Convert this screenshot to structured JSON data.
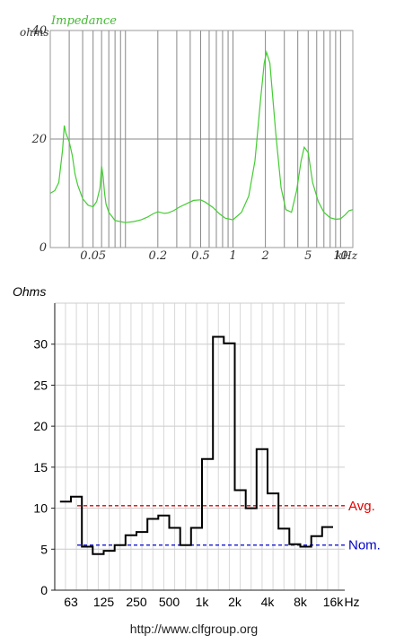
{
  "chart_data": [
    {
      "type": "line",
      "title": "Impedance",
      "ylabel": "ohms",
      "xlabel": "",
      "x_scale": "log",
      "x_unit_label": "kHz",
      "xlim_khz": [
        0.02,
        13
      ],
      "ylim": [
        0,
        40
      ],
      "y_ticks": [
        {
          "value": 0,
          "label": "0"
        },
        {
          "value": 20,
          "label": "20"
        },
        {
          "value": 40,
          "label": "40"
        }
      ],
      "x_ticks": [
        {
          "value": 0.05,
          "label": "0.05"
        },
        {
          "value": 0.2,
          "label": "0.2"
        },
        {
          "value": 0.5,
          "label": "0.5"
        },
        {
          "value": 1,
          "label": "1"
        },
        {
          "value": 2,
          "label": "2"
        },
        {
          "value": 5,
          "label": "5"
        },
        {
          "value": 10,
          "label": "10"
        }
      ],
      "grid": true,
      "line_color": "#44cc33",
      "series": [
        {
          "x": [
            0.02,
            0.022,
            0.024,
            0.026,
            0.027,
            0.028,
            0.03,
            0.032,
            0.034,
            0.036,
            0.04,
            0.045,
            0.05,
            0.054,
            0.058,
            0.06,
            0.062,
            0.064,
            0.066,
            0.07,
            0.08,
            0.1,
            0.12,
            0.14,
            0.16,
            0.18,
            0.2,
            0.23,
            0.25,
            0.28,
            0.32,
            0.38,
            0.43,
            0.5,
            0.55,
            0.65,
            0.75,
            0.85,
            1.0,
            1.2,
            1.4,
            1.6,
            1.8,
            1.95,
            2.05,
            2.2,
            2.5,
            2.8,
            3.1,
            3.5,
            3.9,
            4.3,
            4.6,
            5.0,
            5.5,
            6.2,
            7.0,
            8.0,
            9.0,
            10.0,
            11.0,
            12.0,
            13.0
          ],
          "values": [
            10,
            10.5,
            12,
            18,
            22.5,
            21,
            19.5,
            17,
            13.5,
            11.5,
            9,
            7.8,
            7.5,
            8.5,
            11,
            15,
            13,
            10,
            8,
            6.5,
            5,
            4.6,
            4.8,
            5.1,
            5.6,
            6.2,
            6.6,
            6.3,
            6.4,
            6.8,
            7.5,
            8.2,
            8.7,
            8.8,
            8.4,
            7.4,
            6.2,
            5.4,
            5.1,
            6.5,
            9.5,
            16,
            27,
            34,
            36,
            34,
            21,
            11,
            7,
            6.5,
            10.5,
            16,
            18.5,
            17.5,
            12,
            8.5,
            6.5,
            5.5,
            5.2,
            5.3,
            6.0,
            6.8,
            7.0
          ]
        }
      ]
    },
    {
      "type": "step",
      "title": "",
      "ylabel": "Ohms",
      "xlabel": "",
      "x_unit_label": "Hz",
      "ylim": [
        0,
        35
      ],
      "y_ticks": [
        0,
        5,
        10,
        15,
        20,
        25,
        30
      ],
      "x_labels": [
        "63",
        "125",
        "250",
        "500",
        "1k",
        "2k",
        "4k",
        "8k",
        "16k"
      ],
      "bands_per_label": 3,
      "grid": true,
      "bands": [
        {
          "value": 10.8
        },
        {
          "value": 11.4
        },
        {
          "value": 5.3
        },
        {
          "value": 4.4
        },
        {
          "value": 4.8
        },
        {
          "value": 5.5
        },
        {
          "value": 6.7
        },
        {
          "value": 7.1
        },
        {
          "value": 8.7
        },
        {
          "value": 9.1
        },
        {
          "value": 7.6
        },
        {
          "value": 5.5
        },
        {
          "value": 7.6
        },
        {
          "value": 16.0
        },
        {
          "value": 30.9
        },
        {
          "value": 30.1
        },
        {
          "value": 12.2
        },
        {
          "value": 10.0
        },
        {
          "value": 17.2
        },
        {
          "value": 11.8
        },
        {
          "value": 7.5
        },
        {
          "value": 5.6
        },
        {
          "value": 5.3
        },
        {
          "value": 6.6
        },
        {
          "value": 7.7
        }
      ],
      "reference_lines": [
        {
          "label": "Avg.",
          "value": 10.3,
          "color": "#e00000"
        },
        {
          "label": "Nom.",
          "value": 5.5,
          "color": "#0000cc"
        }
      ]
    }
  ],
  "footer": {
    "url": "http://www.clfgroup.org"
  }
}
